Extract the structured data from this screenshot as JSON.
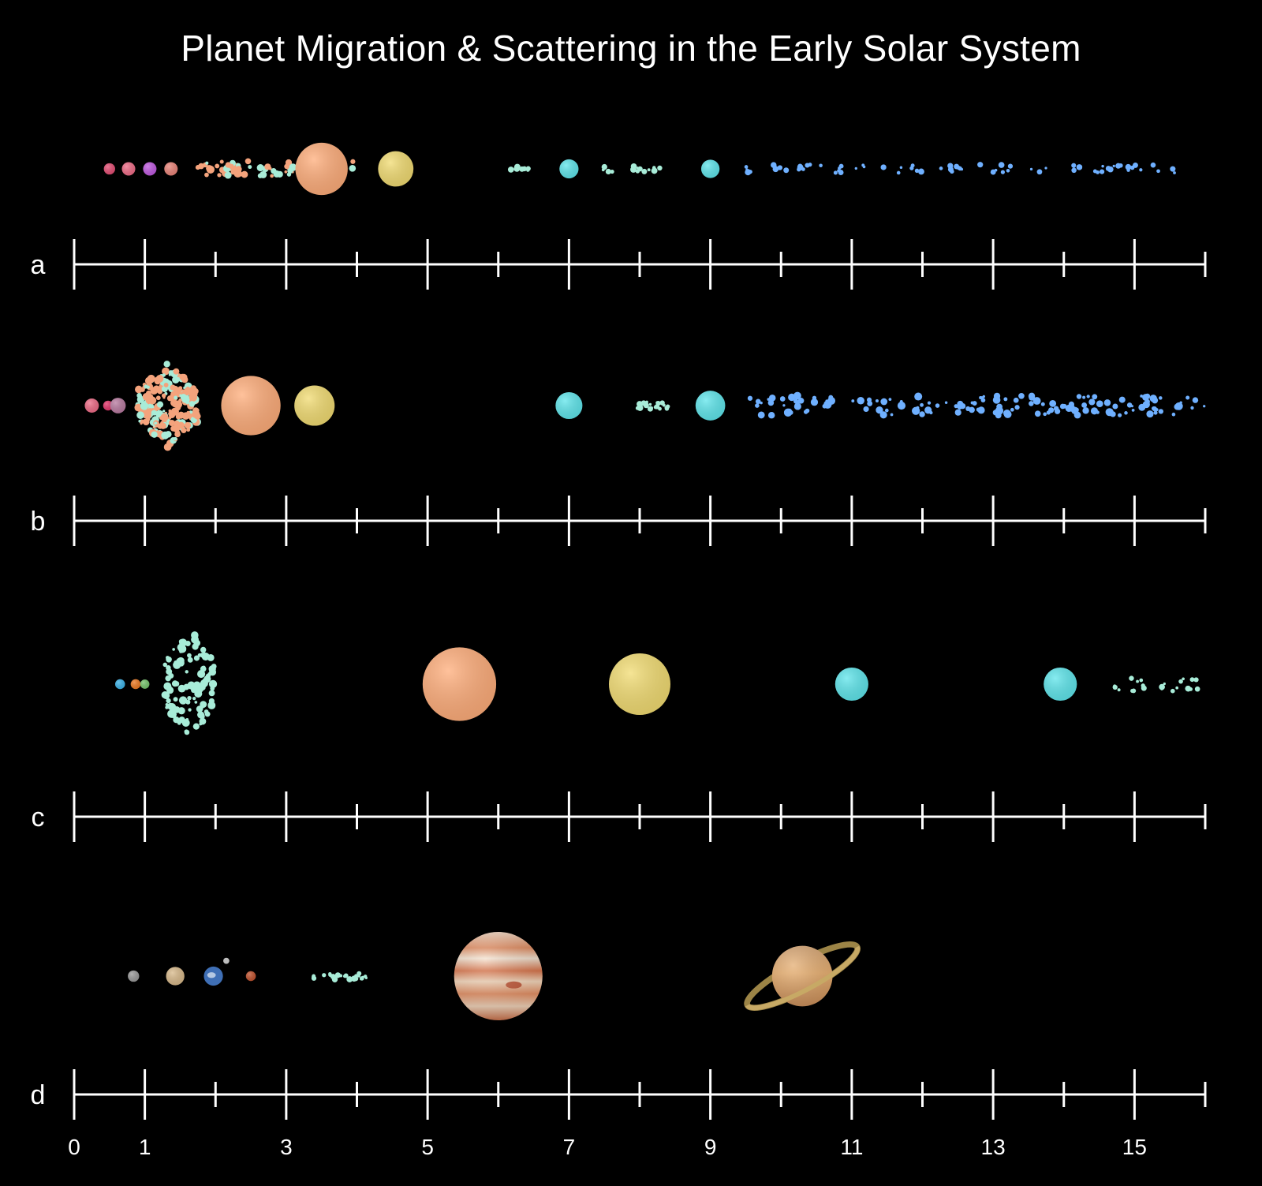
{
  "title": "Planet Migration & Scattering in the Early Solar System",
  "axis": {
    "min": 0,
    "max": 16,
    "major_ticks": [
      0,
      1,
      3,
      5,
      7,
      9,
      11,
      13,
      15
    ],
    "tick_labels": [
      "0",
      "1",
      "3",
      "5",
      "7",
      "9",
      "11",
      "13",
      "15"
    ],
    "shown_on_panel": "d"
  },
  "colors": {
    "background": "#000000",
    "axis": "#ffffff",
    "giant_1": "#ffad7a",
    "giant_2": "#f2dc72",
    "ice_giant": "#5fe6ec",
    "inner_disk": "#f4a37c",
    "inner_disk_alt": "#a8ecd8",
    "outer_disk": "#6fb0ff"
  },
  "panels": [
    {
      "label": "a",
      "bodies": [
        {
          "x": 0.5,
          "kind": "rocky",
          "color": "#e34d73",
          "size": 0.16
        },
        {
          "x": 0.77,
          "kind": "rocky",
          "color": "#ee6b86",
          "size": 0.19
        },
        {
          "x": 1.07,
          "kind": "rocky",
          "color": "#bf59e0",
          "size": 0.19
        },
        {
          "x": 1.37,
          "kind": "rocky",
          "color": "#ea8479",
          "size": 0.19
        },
        {
          "x": 3.5,
          "kind": "giant",
          "color": "#ffad7a",
          "size": 0.74
        },
        {
          "x": 4.55,
          "kind": "giant",
          "color": "#f2dc72",
          "size": 0.5
        },
        {
          "x": 7.0,
          "kind": "ice",
          "color": "#5fe6ec",
          "size": 0.27
        },
        {
          "x": 9.0,
          "kind": "ice",
          "color": "#5fe6ec",
          "size": 0.26
        }
      ],
      "belts": [
        {
          "from": 1.65,
          "to": 4.0,
          "color": "#f4a37c",
          "spread": 0.22,
          "count": 70
        },
        {
          "from": 6.1,
          "to": 6.5,
          "color": "#a8ecd8",
          "spread": 0.06,
          "count": 8
        },
        {
          "from": 7.45,
          "to": 8.5,
          "color": "#a8ecd8",
          "spread": 0.08,
          "count": 14
        },
        {
          "from": 9.4,
          "to": 15.8,
          "color": "#6fb0ff",
          "spread": 0.12,
          "count": 70
        }
      ]
    },
    {
      "label": "b",
      "bodies": [
        {
          "x": 0.25,
          "kind": "rocky",
          "color": "#ee6b86",
          "size": 0.2
        },
        {
          "x": 0.48,
          "kind": "rocky",
          "color": "#e3356a",
          "size": 0.14
        },
        {
          "x": 0.62,
          "kind": "rocky",
          "color": "#b87aa0",
          "size": 0.22
        },
        {
          "x": 2.5,
          "kind": "giant",
          "color": "#ffad7a",
          "size": 0.84
        },
        {
          "x": 3.4,
          "kind": "giant",
          "color": "#f2dc72",
          "size": 0.57
        },
        {
          "x": 7.0,
          "kind": "ice",
          "color": "#5fe6ec",
          "size": 0.38
        },
        {
          "x": 9.0,
          "kind": "ice",
          "color": "#5fe6ec",
          "size": 0.42
        }
      ],
      "belts": [
        {
          "from": 0.9,
          "to": 1.75,
          "color": "#f4a37c",
          "spread": 1.2,
          "count": 260
        },
        {
          "from": 7.95,
          "to": 8.4,
          "color": "#a8ecd8",
          "spread": 0.1,
          "count": 22
        },
        {
          "from": 9.55,
          "to": 16.0,
          "color": "#6fb0ff",
          "spread": 0.28,
          "count": 150
        }
      ]
    },
    {
      "label": "c",
      "bodies": [
        {
          "x": 0.65,
          "kind": "rocky",
          "color": "#3bb2e8",
          "size": 0.14
        },
        {
          "x": 0.87,
          "kind": "rocky",
          "color": "#ee7a22",
          "size": 0.14
        },
        {
          "x": 1.0,
          "kind": "rocky",
          "color": "#76c46c",
          "size": 0.13
        },
        {
          "x": 5.45,
          "kind": "giant",
          "color": "#ffad7a",
          "size": 1.04
        },
        {
          "x": 8.0,
          "kind": "giant",
          "color": "#f2dc72",
          "size": 0.87
        },
        {
          "x": 11.0,
          "kind": "ice",
          "color": "#5fe6ec",
          "size": 0.47
        },
        {
          "x": 13.95,
          "kind": "ice",
          "color": "#5fe6ec",
          "size": 0.47
        }
      ],
      "belts": [
        {
          "from": 1.28,
          "to": 1.98,
          "color": "#a8ecd8",
          "spread": 1.6,
          "count": 110
        },
        {
          "from": 14.6,
          "to": 15.95,
          "color": "#a8ecd8",
          "spread": 0.2,
          "count": 24
        }
      ]
    },
    {
      "label": "d",
      "bodies": [
        {
          "x": 0.84,
          "kind": "real-planet",
          "icon": "mercury-icon",
          "color": "#9a9a9a",
          "size": 0.16
        },
        {
          "x": 1.43,
          "kind": "real-planet",
          "icon": "venus-icon",
          "color": "#d8b98a",
          "size": 0.26
        },
        {
          "x": 1.97,
          "kind": "real-planet",
          "icon": "earth-icon",
          "color": "#3f6fb5",
          "size": 0.27
        },
        {
          "x": 2.5,
          "kind": "real-planet",
          "icon": "mars-icon",
          "color": "#c0522e",
          "size": 0.14
        },
        {
          "x": 6.0,
          "kind": "real-planet",
          "icon": "jupiter-icon",
          "color": "#e8a27a",
          "size": 1.25
        },
        {
          "x": 10.3,
          "kind": "real-planet",
          "icon": "saturn-icon",
          "color": "#e0a864",
          "size": 0.95
        }
      ],
      "belts": [
        {
          "from": 3.3,
          "to": 4.15,
          "color": "#a8ecd8",
          "spread": 0.1,
          "count": 24
        }
      ]
    }
  ]
}
